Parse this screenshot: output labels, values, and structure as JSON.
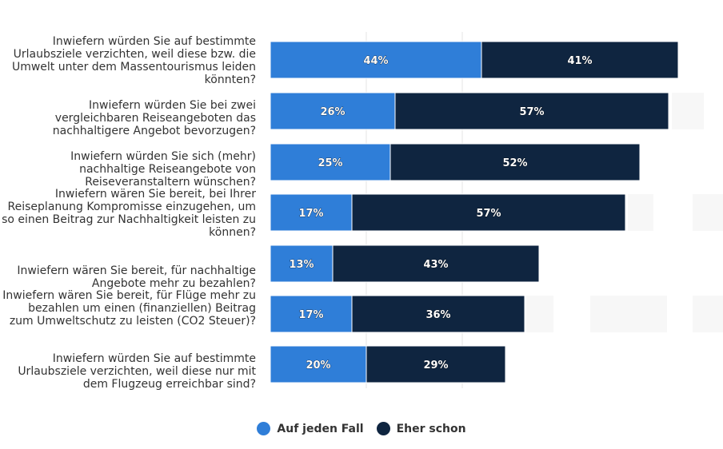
{
  "chart_data": {
    "type": "bar",
    "orientation": "horizontal",
    "stacked": true,
    "title": "",
    "xlabel": "",
    "ylabel": "",
    "xlim": [
      0,
      100
    ],
    "grid": true,
    "legend_position": "bottom",
    "categories": [
      "Inwiefern würden Sie auf bestimmte Urlaubsziele verzichten, weil diese bzw. die Umwelt unter dem Massentourismus leiden könnten?",
      "Inwiefern würden Sie bei zwei vergleichbaren Reiseangeboten das nachhaltigere Angebot bevorzugen?",
      "Inwiefern würden Sie sich (mehr) nachhaltige Reiseangebote von Reiseveranstaltern wünschen?",
      "Inwiefern wären Sie bereit, bei Ihrer Reiseplanung Kompromisse einzugehen, um so einen Beitrag zur Nachhaltigkeit leisten zu können?",
      "Inwiefern wären Sie bereit, für nachhaltige Angebote mehr zu bezahlen?",
      "Inwiefern wären Sie bereit, für Flüge mehr zu bezahlen um einen (finanziellen) Beitrag zum Umweltschutz zu leisten (CO2 Steuer)?",
      "Inwiefern würden Sie auf bestimmte Urlaubsziele verzichten, weil diese nur mit dem Flugzeug erreichbar sind?"
    ],
    "series": [
      {
        "name": "Auf jeden Fall",
        "color": "#2f7ed8",
        "values": [
          44,
          26,
          25,
          17,
          13,
          17,
          20
        ],
        "labels": [
          "44%",
          "26%",
          "25%",
          "17%",
          "13%",
          "17%",
          "20%"
        ]
      },
      {
        "name": "Eher schon",
        "color": "#0f2540",
        "values": [
          41,
          57,
          52,
          57,
          43,
          36,
          29
        ],
        "labels": [
          "41%",
          "57%",
          "52%",
          "57%",
          "43%",
          "36%",
          "29%"
        ]
      }
    ]
  }
}
